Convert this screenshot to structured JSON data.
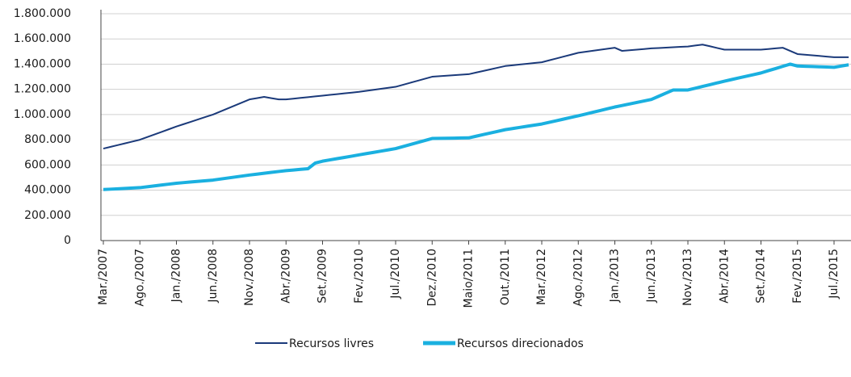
{
  "chart_data": {
    "type": "line",
    "categories": [
      "Mar./2007",
      null,
      null,
      null,
      null,
      "Ago./2007",
      null,
      null,
      null,
      null,
      "Jan./2008",
      null,
      null,
      null,
      null,
      "Jun./2008",
      null,
      null,
      null,
      null,
      "Nov./2008",
      null,
      null,
      null,
      null,
      "Abr./2009",
      null,
      null,
      null,
      null,
      "Set./2009",
      null,
      null,
      null,
      null,
      "Fev./2010",
      null,
      null,
      null,
      null,
      "Jul./2010",
      null,
      null,
      null,
      null,
      "Dez./2010",
      null,
      null,
      null,
      null,
      "Maio/2011",
      null,
      null,
      null,
      null,
      "Out./2011",
      null,
      null,
      null,
      null,
      "Mar./2012",
      null,
      null,
      null,
      null,
      "Ago./2012",
      null,
      null,
      null,
      null,
      "Jan./2013",
      null,
      null,
      null,
      null,
      "Jun./2013",
      null,
      null,
      null,
      null,
      "Nov./2013",
      null,
      null,
      null,
      null,
      "Abr./2014",
      null,
      null,
      null,
      null,
      "Set./2014",
      null,
      null,
      null,
      null,
      "Fev./2015",
      null,
      null,
      null,
      null,
      "Jul./2015",
      null,
      null
    ],
    "series": [
      {
        "name": "Recursos livres",
        "color": "#1b3a7a",
        "values": [
          730000,
          744000,
          758000,
          772000,
          786000,
          800000,
          821000,
          842000,
          863000,
          884000,
          905000,
          924000,
          943000,
          962000,
          981000,
          1000000,
          1024000,
          1048000,
          1072000,
          1096000,
          1120000,
          1130000,
          1140000,
          1130000,
          1120000,
          1120000,
          1126000,
          1132000,
          1138000,
          1144000,
          1150000,
          1156000,
          1162000,
          1168000,
          1174000,
          1180000,
          1188000,
          1196000,
          1204000,
          1212000,
          1220000,
          1236000,
          1252000,
          1268000,
          1284000,
          1300000,
          1304000,
          1308000,
          1312000,
          1316000,
          1320000,
          1333000,
          1346000,
          1359000,
          1372000,
          1385000,
          1391000,
          1397000,
          1403000,
          1409000,
          1415000,
          1430000,
          1445000,
          1460000,
          1475000,
          1490000,
          1498000,
          1506000,
          1514000,
          1522000,
          1530000,
          1505000,
          1510000,
          1515000,
          1520000,
          1525000,
          1528000,
          1531000,
          1534000,
          1537000,
          1540000,
          1548000,
          1555000,
          1542000,
          1528000,
          1515000,
          1515000,
          1515000,
          1515000,
          1515000,
          1515000,
          1520000,
          1525000,
          1530000,
          1505000,
          1480000,
          1475000,
          1470000,
          1465000,
          1460000,
          1455000,
          1455000,
          1455000
        ]
      },
      {
        "name": "Recursos direcionados",
        "color": "#1ab0e0",
        "values": [
          405000,
          408000,
          411000,
          414000,
          417000,
          420000,
          427000,
          434000,
          441000,
          448000,
          455000,
          460000,
          465000,
          470000,
          475000,
          480000,
          488000,
          496000,
          504000,
          512000,
          520000,
          527000,
          534000,
          541000,
          548000,
          555000,
          560000,
          565000,
          570000,
          615000,
          630000,
          640000,
          650000,
          660000,
          670000,
          680000,
          690000,
          700000,
          710000,
          720000,
          730000,
          746000,
          762000,
          778000,
          794000,
          810000,
          811000,
          812000,
          813000,
          814000,
          815000,
          828000,
          841000,
          854000,
          867000,
          880000,
          889000,
          898000,
          907000,
          916000,
          925000,
          938000,
          951000,
          964000,
          977000,
          990000,
          1004000,
          1018000,
          1032000,
          1046000,
          1060000,
          1072000,
          1084000,
          1096000,
          1108000,
          1120000,
          1145000,
          1170000,
          1195000,
          1195000,
          1195000,
          1209000,
          1223000,
          1237000,
          1251000,
          1265000,
          1278000,
          1291000,
          1304000,
          1317000,
          1330000,
          1348000,
          1365000,
          1383000,
          1400000,
          1385000,
          1383000,
          1381000,
          1379000,
          1377000,
          1375000,
          1385000,
          1395000
        ]
      }
    ],
    "ylim": [
      0,
      1800000
    ],
    "yticks": [
      0,
      {
        "value": 200000,
        "label": "200.000"
      },
      {
        "value": 400000,
        "label": "400.000"
      },
      {
        "value": 600000,
        "label": "600.000"
      },
      {
        "value": 800000,
        "label": "800.000"
      },
      {
        "value": 1000000,
        "label": "1.000.000"
      },
      {
        "value": 1200000,
        "label": "1.200.000"
      },
      {
        "value": 1400000,
        "label": "1.400.000"
      },
      {
        "value": 1600000,
        "label": "1.600.000"
      },
      {
        "value": 1800000,
        "label": "1.800.000"
      }
    ],
    "grid": true
  }
}
